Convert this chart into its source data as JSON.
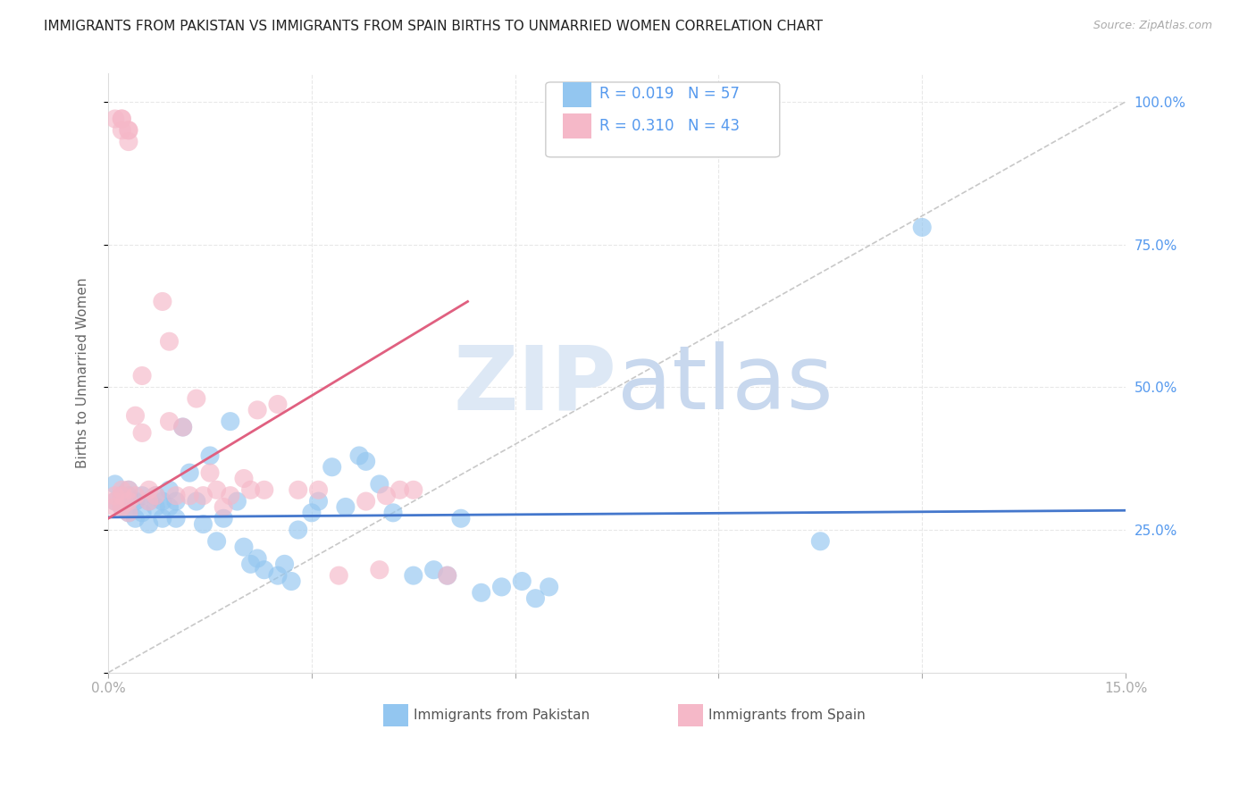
{
  "title": "IMMIGRANTS FROM PAKISTAN VS IMMIGRANTS FROM SPAIN BIRTHS TO UNMARRIED WOMEN CORRELATION CHART",
  "source": "Source: ZipAtlas.com",
  "ylabel": "Births to Unmarried Women",
  "legend_r1": "0.019",
  "legend_n1": "57",
  "legend_r2": "0.310",
  "legend_n2": "43",
  "legend_label1": "Immigrants from Pakistan",
  "legend_label2": "Immigrants from Spain",
  "blue_color": "#93c6f0",
  "pink_color": "#f5b8c8",
  "trend_blue": "#4477cc",
  "trend_pink": "#e06080",
  "ref_line_color": "#c8c8c8",
  "grid_color": "#e8e8e8",
  "title_color": "#222222",
  "axis_label_color": "#666666",
  "right_tick_color": "#5599ee",
  "watermark_color": "#dde8f5",
  "xlim": [
    0.0,
    0.15
  ],
  "ylim": [
    0.0,
    1.05
  ],
  "pakistan_x": [
    0.001,
    0.001,
    0.002,
    0.002,
    0.003,
    0.003,
    0.003,
    0.004,
    0.004,
    0.005,
    0.005,
    0.006,
    0.006,
    0.007,
    0.007,
    0.008,
    0.008,
    0.009,
    0.009,
    0.01,
    0.01,
    0.011,
    0.012,
    0.013,
    0.014,
    0.015,
    0.016,
    0.017,
    0.018,
    0.019,
    0.02,
    0.021,
    0.022,
    0.023,
    0.025,
    0.026,
    0.027,
    0.028,
    0.03,
    0.031,
    0.033,
    0.035,
    0.037,
    0.038,
    0.04,
    0.042,
    0.045,
    0.048,
    0.05,
    0.052,
    0.055,
    0.058,
    0.061,
    0.063,
    0.065,
    0.105,
    0.12
  ],
  "pakistan_y": [
    0.33,
    0.3,
    0.31,
    0.29,
    0.32,
    0.28,
    0.31,
    0.3,
    0.27,
    0.31,
    0.28,
    0.3,
    0.26,
    0.29,
    0.31,
    0.3,
    0.27,
    0.32,
    0.29,
    0.27,
    0.3,
    0.43,
    0.35,
    0.3,
    0.26,
    0.38,
    0.23,
    0.27,
    0.44,
    0.3,
    0.22,
    0.19,
    0.2,
    0.18,
    0.17,
    0.19,
    0.16,
    0.25,
    0.28,
    0.3,
    0.36,
    0.29,
    0.38,
    0.37,
    0.33,
    0.28,
    0.17,
    0.18,
    0.17,
    0.27,
    0.14,
    0.15,
    0.16,
    0.13,
    0.15,
    0.23,
    0.78
  ],
  "spain_x": [
    0.001,
    0.001,
    0.001,
    0.002,
    0.002,
    0.002,
    0.003,
    0.003,
    0.003,
    0.004,
    0.004,
    0.005,
    0.005,
    0.006,
    0.006,
    0.007,
    0.008,
    0.009,
    0.009,
    0.01,
    0.011,
    0.012,
    0.013,
    0.014,
    0.015,
    0.016,
    0.017,
    0.018,
    0.02,
    0.021,
    0.022,
    0.023,
    0.025,
    0.028,
    0.031,
    0.034,
    0.038,
    0.04,
    0.041,
    0.043,
    0.045,
    0.05,
    0.16
  ],
  "spain_y": [
    0.3,
    0.31,
    0.29,
    0.32,
    0.29,
    0.31,
    0.3,
    0.28,
    0.32,
    0.31,
    0.45,
    0.52,
    0.42,
    0.3,
    0.32,
    0.31,
    0.65,
    0.58,
    0.44,
    0.31,
    0.43,
    0.31,
    0.48,
    0.31,
    0.35,
    0.32,
    0.29,
    0.31,
    0.34,
    0.32,
    0.46,
    0.32,
    0.47,
    0.32,
    0.32,
    0.17,
    0.3,
    0.18,
    0.31,
    0.32,
    0.32,
    0.17,
    0.18
  ],
  "spain_top_x": [
    0.001,
    0.002,
    0.002,
    0.002,
    0.003,
    0.003,
    0.003
  ],
  "spain_top_y": [
    0.97,
    0.97,
    0.95,
    0.97,
    0.95,
    0.95,
    0.93
  ]
}
